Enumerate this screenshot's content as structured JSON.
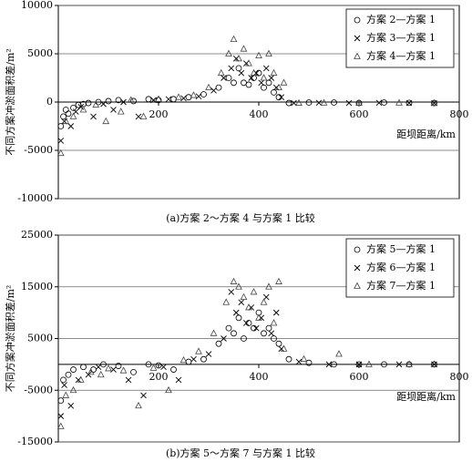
{
  "chart_data": [
    {
      "type": "scatter",
      "title": "(a)方案 2～方案 4 与方案 1 比较",
      "xlabel": "距坝距离/km",
      "ylabel": "不同方案冲淤面积差/m²",
      "xlim": [
        0,
        800
      ],
      "xticks": [
        200,
        400,
        600,
        800
      ],
      "ylim": [
        -10000,
        10000
      ],
      "yticks": [
        10000,
        5000,
        0,
        -5000,
        -10000
      ],
      "grid": true,
      "legend": "upper right",
      "series": [
        {
          "name": "方案 2—方案 1",
          "marker": "circle",
          "color": "#000000",
          "x": [
            5,
            10,
            15,
            20,
            30,
            40,
            50,
            60,
            80,
            100,
            120,
            150,
            180,
            200,
            230,
            260,
            290,
            320,
            340,
            350,
            360,
            370,
            380,
            390,
            400,
            410,
            420,
            430,
            440,
            460,
            500,
            550,
            600,
            650,
            700,
            750
          ],
          "values": [
            -2500,
            -1500,
            -800,
            -1200,
            -600,
            -300,
            -200,
            -100,
            0,
            100,
            200,
            100,
            300,
            200,
            300,
            500,
            800,
            1500,
            2500,
            2000,
            3500,
            2000,
            1800,
            2500,
            3000,
            1500,
            2000,
            1000,
            500,
            -100,
            -50,
            -50,
            -100,
            -50,
            -80,
            -100
          ]
        },
        {
          "name": "方案 3—方案 1",
          "marker": "cross",
          "color": "#000000",
          "x": [
            5,
            12,
            25,
            35,
            45,
            70,
            90,
            110,
            130,
            160,
            190,
            220,
            250,
            280,
            310,
            330,
            345,
            355,
            365,
            375,
            385,
            395,
            405,
            415,
            425,
            435,
            445,
            470,
            520,
            580,
            640,
            700,
            750
          ],
          "values": [
            -4000,
            -2000,
            -2500,
            -1000,
            -500,
            -1500,
            -200,
            -800,
            0,
            -1500,
            200,
            300,
            400,
            600,
            1200,
            2500,
            3500,
            4500,
            3000,
            4000,
            2500,
            3000,
            2000,
            3500,
            2500,
            1500,
            500,
            -100,
            -80,
            -100,
            -80,
            -100,
            -120
          ]
        },
        {
          "name": "方案 4—方案 1",
          "marker": "triangle",
          "color": "#444444",
          "x": [
            5,
            15,
            30,
            50,
            75,
            95,
            125,
            145,
            170,
            200,
            240,
            270,
            300,
            325,
            340,
            350,
            360,
            370,
            380,
            390,
            400,
            410,
            420,
            430,
            440,
            450,
            480,
            530,
            600,
            680,
            750
          ],
          "values": [
            -5300,
            -2000,
            -1500,
            -800,
            -300,
            -2000,
            -1000,
            200,
            -1500,
            300,
            500,
            700,
            1500,
            3000,
            5000,
            6500,
            4500,
            5500,
            4000,
            3000,
            4800,
            2500,
            5000,
            3000,
            1500,
            2000,
            -100,
            -80,
            -100,
            -80,
            -100
          ]
        }
      ]
    },
    {
      "type": "scatter",
      "title": "(b)方案 5～方案 7 与方案 1 比较",
      "xlabel": "距坝距离/km",
      "ylabel": "不同方案冲淤面积差/m²",
      "xlim": [
        0,
        800
      ],
      "xticks": [
        200,
        400,
        600,
        800
      ],
      "ylim": [
        -15000,
        25000
      ],
      "yticks": [
        25000,
        15000,
        5000,
        -5000,
        -15000
      ],
      "grid": true,
      "legend": "upper right",
      "series": [
        {
          "name": "方案 5—方案 1",
          "marker": "circle",
          "color": "#000000",
          "x": [
            5,
            10,
            20,
            30,
            50,
            70,
            90,
            120,
            150,
            180,
            200,
            230,
            260,
            290,
            320,
            340,
            350,
            360,
            370,
            380,
            390,
            400,
            410,
            420,
            430,
            440,
            460,
            500,
            550,
            600,
            650,
            700,
            750
          ],
          "values": [
            -7000,
            -3000,
            -2000,
            -1000,
            -500,
            -1000,
            0,
            -300,
            -1500,
            0,
            -200,
            -1000,
            500,
            1000,
            4000,
            7000,
            6000,
            9000,
            5000,
            8000,
            7000,
            10000,
            6000,
            7000,
            5000,
            4000,
            1000,
            300,
            0,
            0,
            0,
            0,
            0
          ]
        },
        {
          "name": "方案 6—方案 1",
          "marker": "cross",
          "color": "#000000",
          "x": [
            5,
            12,
            25,
            40,
            60,
            80,
            110,
            140,
            170,
            210,
            240,
            270,
            300,
            330,
            345,
            355,
            365,
            375,
            385,
            395,
            405,
            415,
            425,
            435,
            445,
            480,
            540,
            600,
            680,
            750
          ],
          "values": [
            -10000,
            -4000,
            -8000,
            -3000,
            -2000,
            -500,
            -1000,
            -3000,
            -6000,
            -500,
            -3000,
            1000,
            2000,
            5000,
            14000,
            10000,
            12000,
            8000,
            11000,
            7000,
            9000,
            13000,
            6000,
            10000,
            3000,
            500,
            0,
            0,
            0,
            0
          ]
        },
        {
          "name": "方案 7—方案 1",
          "marker": "triangle",
          "color": "#444444",
          "x": [
            5,
            15,
            30,
            45,
            65,
            85,
            100,
            130,
            160,
            190,
            220,
            250,
            280,
            310,
            335,
            350,
            360,
            370,
            380,
            390,
            400,
            410,
            420,
            430,
            440,
            450,
            490,
            560,
            620,
            700,
            750
          ],
          "values": [
            -12000,
            -6000,
            -5000,
            -3000,
            -1500,
            -2000,
            -800,
            -1200,
            -8000,
            -700,
            -5000,
            800,
            2500,
            6000,
            12000,
            16000,
            15000,
            13000,
            11000,
            14000,
            9000,
            12000,
            15000,
            8000,
            16000,
            3000,
            1000,
            2000,
            0,
            0,
            0
          ]
        }
      ]
    }
  ]
}
